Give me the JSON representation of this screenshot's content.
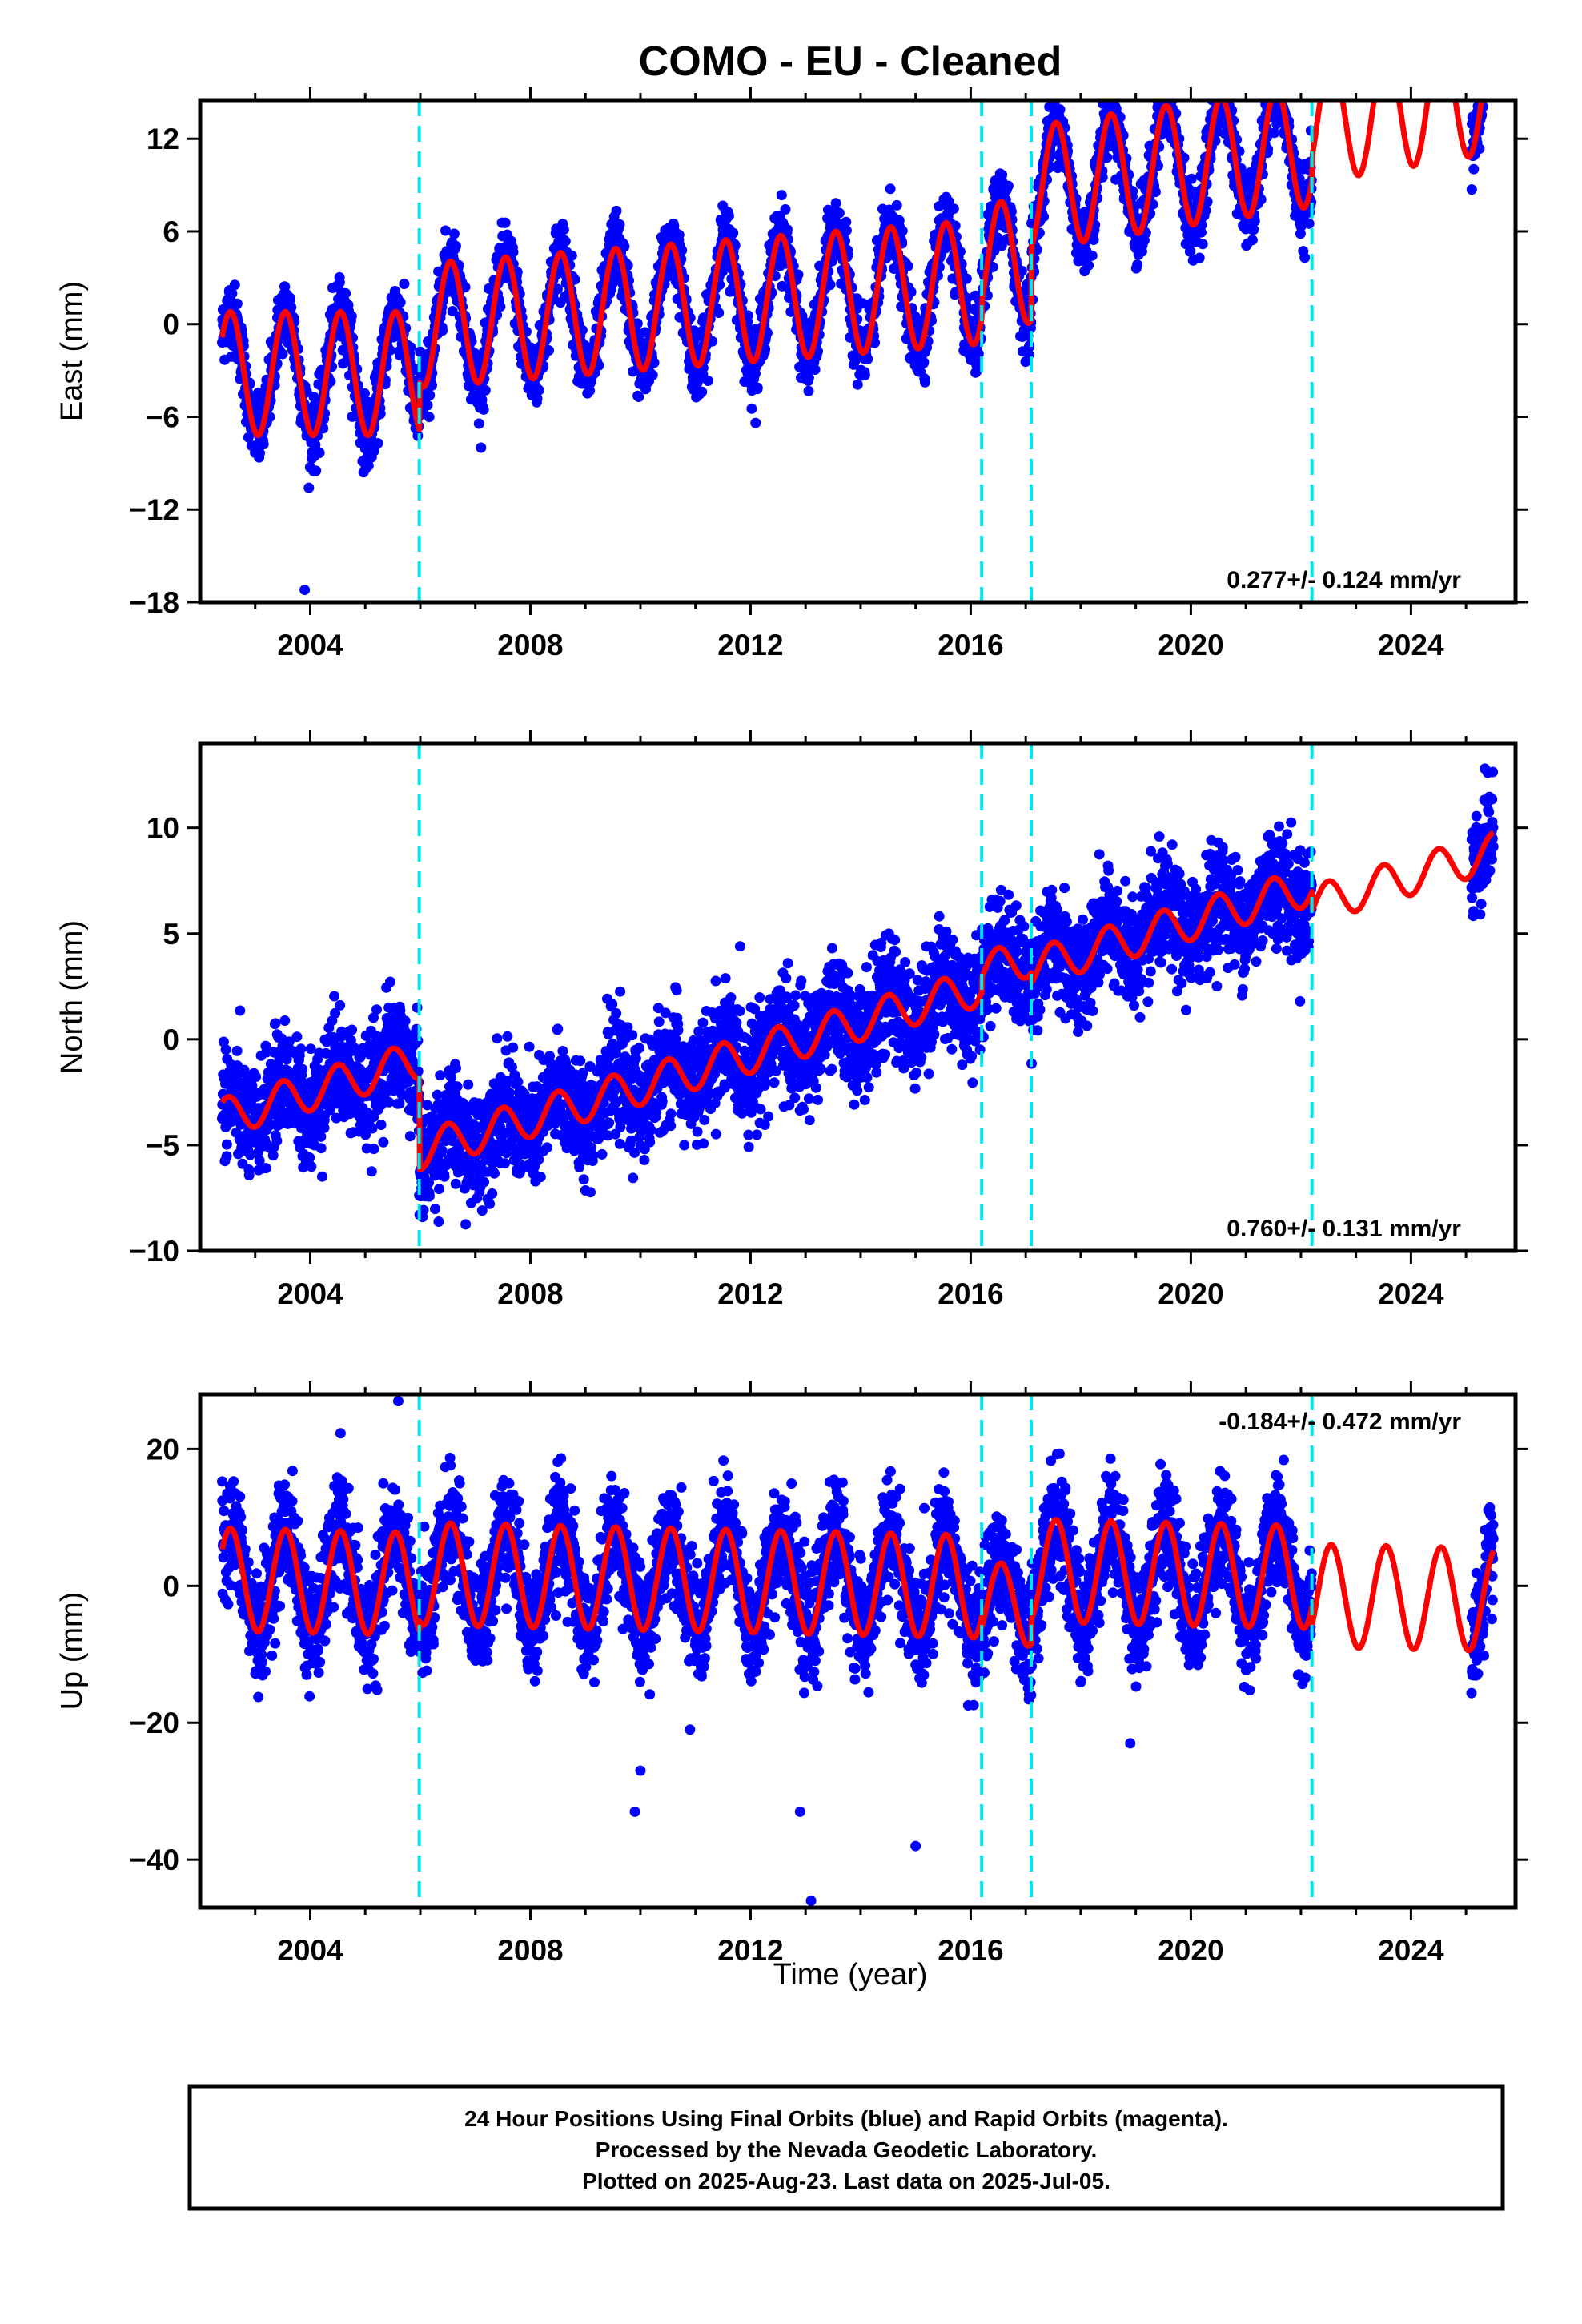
{
  "title": "COMO  - EU - Cleaned",
  "xlabel": "Time (year)",
  "x_tick_labels": [
    "2004",
    "2008",
    "2012",
    "2016",
    "2020",
    "2024"
  ],
  "footer": {
    "line1": "24 Hour Positions Using Final Orbits (blue) and Rapid Orbits (magenta).",
    "line2": "Processed by the Nevada Geodetic Laboratory.",
    "line3": "Plotted on 2025-Aug-23. Last data on 2025-Jul-05."
  },
  "colors": {
    "observations": "#0000ff",
    "model": "#ff0000",
    "equipment_change": "#00e5ee"
  },
  "chart_data": [
    {
      "type": "scatter",
      "panel": "east",
      "ylabel": "East (mm)",
      "xlim": [
        2002.0,
        2025.9
      ],
      "ylim": [
        -18,
        14.5
      ],
      "y_ticks": [
        -18,
        -12,
        -6,
        0,
        6,
        12
      ],
      "y_tick_labels": [
        "−18",
        "−12",
        "−6",
        "0",
        "6",
        "12"
      ],
      "x_ticks": [
        2004,
        2008,
        2012,
        2016,
        2020,
        2024
      ],
      "grid": false,
      "rate_label": "0.277+/- 0.124 mm/yr",
      "rate_label_position": "bottom-right",
      "data_span": [
        2002.4,
        2022.2
      ],
      "data_span2": [
        2025.1,
        2025.5
      ],
      "equipment_change_years": [
        2005.98,
        2016.2,
        2017.1,
        2022.2
      ],
      "model_segments": [
        {
          "start": 2002.4,
          "end": 2005.98,
          "offset": -3.2,
          "trend": 0.0,
          "amplitude": 4.0,
          "peak_phase": 0.55
        },
        {
          "start": 2005.98,
          "end": 2016.2,
          "offset": -1.2,
          "trend": 0.277,
          "amplitude": 4.0,
          "peak_phase": 0.55
        },
        {
          "start": 2016.2,
          "end": 2017.1,
          "offset": -0.1,
          "trend": 0.277,
          "amplitude": 4.0,
          "peak_phase": 0.55
        },
        {
          "start": 2017.1,
          "end": 2022.2,
          "offset": 0.5,
          "trend": 0.55,
          "amplitude": 4.0,
          "peak_phase": 0.55
        },
        {
          "start": 2022.2,
          "end": 2025.5,
          "offset": 1.0,
          "trend": 0.6,
          "amplitude": 4.0,
          "peak_phase": 0.55
        }
      ],
      "noise_sd": 1.1,
      "outliers": [
        [
          2003.9,
          -17.2
        ]
      ]
    },
    {
      "type": "scatter",
      "panel": "north",
      "ylabel": "North (mm)",
      "xlim": [
        2002.0,
        2025.9
      ],
      "ylim": [
        -10,
        14
      ],
      "y_ticks": [
        -10,
        -5,
        0,
        5,
        10
      ],
      "y_tick_labels": [
        "−10",
        "−5",
        "0",
        "5",
        "10"
      ],
      "x_ticks": [
        2004,
        2008,
        2012,
        2016,
        2020,
        2024
      ],
      "grid": false,
      "rate_label": "0.760+/- 0.131 mm/yr",
      "rate_label_position": "bottom-right",
      "data_span": [
        2002.4,
        2022.2
      ],
      "data_span2": [
        2025.1,
        2025.5
      ],
      "equipment_change_years": [
        2005.98,
        2016.2,
        2017.1,
        2022.2
      ],
      "model_segments": [
        {
          "start": 2002.4,
          "end": 2005.98,
          "offset": -4.0,
          "trend": 0.76,
          "amplitude": 0.9,
          "peak_phase": 0.5
        },
        {
          "start": 2005.98,
          "end": 2016.2,
          "offset": -8.3,
          "trend": 0.76,
          "amplitude": 0.9,
          "peak_phase": 0.5
        },
        {
          "start": 2016.2,
          "end": 2017.1,
          "offset": -7.6,
          "trend": 0.76,
          "amplitude": 0.9,
          "peak_phase": 0.5
        },
        {
          "start": 2017.1,
          "end": 2022.2,
          "offset": -8.1,
          "trend": 0.76,
          "amplitude": 0.9,
          "peak_phase": 0.5
        },
        {
          "start": 2022.2,
          "end": 2025.5,
          "offset": -9.0,
          "trend": 0.76,
          "amplitude": 0.9,
          "peak_phase": 0.5
        }
      ],
      "noise_sd": 1.3,
      "outliers": []
    },
    {
      "type": "scatter",
      "panel": "up",
      "ylabel": "Up (mm)",
      "xlim": [
        2002.0,
        2025.9
      ],
      "ylim": [
        -47,
        28
      ],
      "y_ticks": [
        -40,
        -20,
        0,
        20
      ],
      "y_tick_labels": [
        "−40",
        "−20",
        "0",
        "20"
      ],
      "x_ticks": [
        2004,
        2008,
        2012,
        2016,
        2020,
        2024
      ],
      "grid": false,
      "rate_label": "-0.184+/- 0.472 mm/yr",
      "rate_label_position": "top-right",
      "data_span": [
        2002.4,
        2022.2
      ],
      "data_span2": [
        2025.1,
        2025.5
      ],
      "equipment_change_years": [
        2005.98,
        2016.2,
        2017.1,
        2022.2
      ],
      "model_segments": [
        {
          "start": 2002.4,
          "end": 2005.98,
          "offset": 1.0,
          "trend": -0.184,
          "amplitude": 7.5,
          "peak_phase": 0.55
        },
        {
          "start": 2005.98,
          "end": 2016.2,
          "offset": 2.5,
          "trend": -0.184,
          "amplitude": 7.5,
          "peak_phase": 0.55
        },
        {
          "start": 2016.2,
          "end": 2017.1,
          "offset": 0.0,
          "trend": -0.184,
          "amplitude": 6.0,
          "peak_phase": 0.55
        },
        {
          "start": 2017.1,
          "end": 2022.2,
          "offset": 5.0,
          "trend": -0.184,
          "amplitude": 7.5,
          "peak_phase": 0.55
        },
        {
          "start": 2022.2,
          "end": 2025.5,
          "offset": 2.3,
          "trend": -0.184,
          "amplitude": 7.5,
          "peak_phase": 0.55
        }
      ],
      "noise_sd": 4.0,
      "outliers": [
        [
          2009.9,
          -33
        ],
        [
          2010.0,
          -27
        ],
        [
          2012.9,
          -33
        ],
        [
          2013.1,
          -46
        ],
        [
          2015.0,
          -38
        ],
        [
          2018.9,
          -23
        ],
        [
          2010.9,
          -21
        ],
        [
          2005.6,
          27
        ]
      ]
    }
  ]
}
